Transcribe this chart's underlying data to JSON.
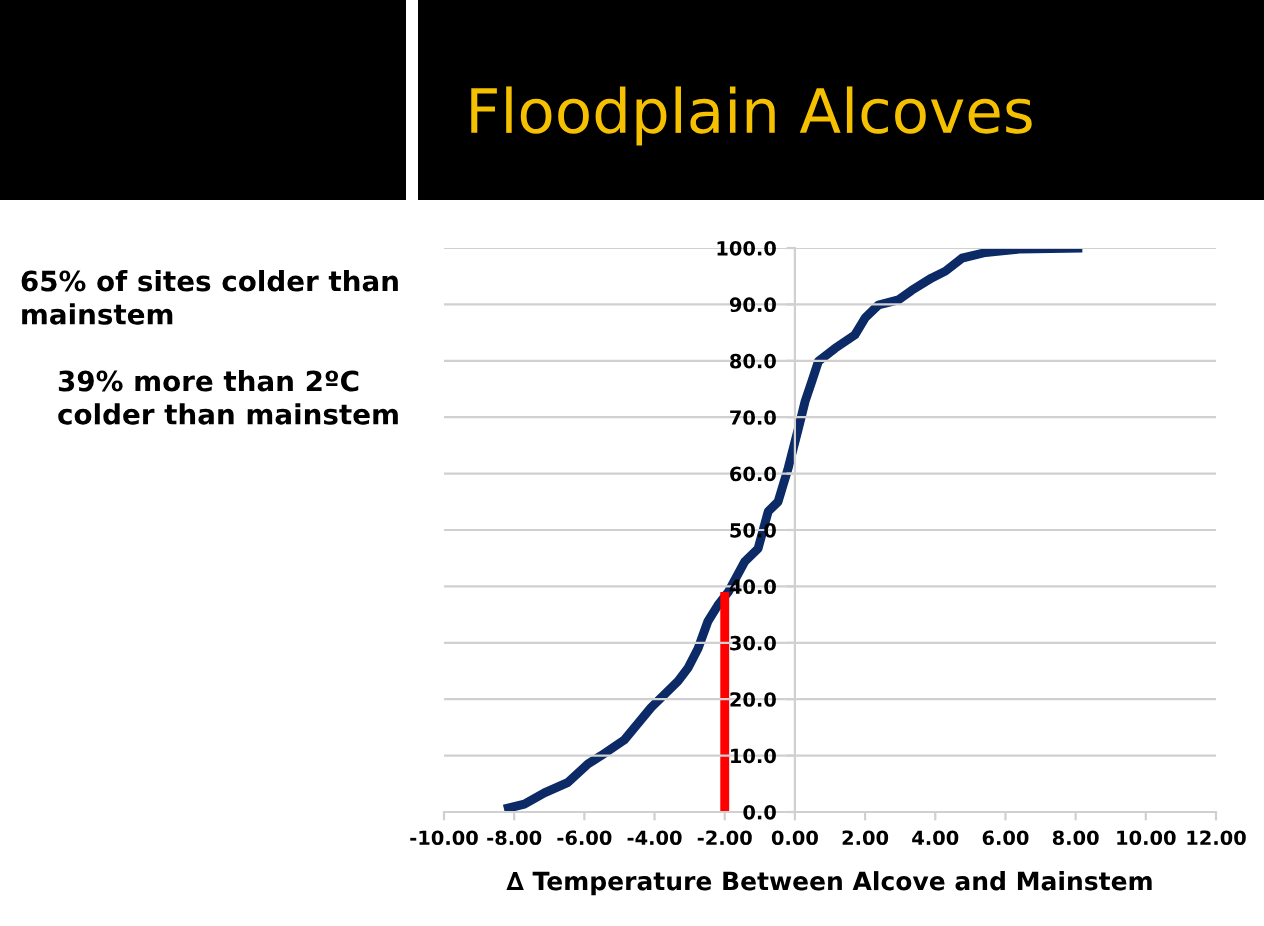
{
  "chart_data": {
    "type": "line",
    "title": "Floodplain Alcoves",
    "xlabel": "∆ Temperature Between Alcove and Mainstem",
    "annotations": [
      "65% of sites colder than mainstem",
      "39% more than 2ºC colder than mainstem"
    ],
    "series": [
      {
        "color": "#0b2a66",
        "x": [
          -8.29,
          -7.71,
          -7.14,
          -6.48,
          -5.9,
          -5.52,
          -4.86,
          -4.1,
          -3.33,
          -3.05,
          -2.76,
          -2.48,
          -2.19,
          -1.9,
          -1.43,
          -1.05,
          -0.76,
          -0.48,
          -0.19,
          0.1,
          0.29,
          0.48,
          0.67,
          1.14,
          1.71,
          2.0,
          2.38,
          2.95,
          3.33,
          3.9,
          4.29,
          4.76,
          5.43,
          6.38,
          8.19
        ],
        "values": [
          0.5,
          1.4,
          3.4,
          5.2,
          8.5,
          10,
          12.8,
          18.5,
          23.2,
          25.5,
          29,
          33.8,
          36.7,
          39,
          44.4,
          46.7,
          53.3,
          55,
          61,
          68,
          72.8,
          76.3,
          79.9,
          82.2,
          84.6,
          87.6,
          89.9,
          90.8,
          92.5,
          94.7,
          95.9,
          98.2,
          99.2,
          99.8,
          100
        ]
      },
      {
        "color": "#ff0000",
        "x": [
          -2.0,
          -2.0
        ],
        "values": [
          0,
          39
        ]
      }
    ],
    "xlim": [
      -10,
      12
    ],
    "ylim": [
      0,
      100
    ],
    "xticks": [
      {
        "value": -10,
        "label": "-10.00"
      },
      {
        "value": -8,
        "label": "-8.00"
      },
      {
        "value": -6,
        "label": "-6.00"
      },
      {
        "value": -4,
        "label": "-4.00"
      },
      {
        "value": -2,
        "label": "-2.00"
      },
      {
        "value": 0,
        "label": "0.00"
      },
      {
        "value": 2,
        "label": "2.00"
      },
      {
        "value": 4,
        "label": "4.00"
      },
      {
        "value": 6,
        "label": "6.00"
      },
      {
        "value": 8,
        "label": "8.00"
      },
      {
        "value": 10,
        "label": "10.00"
      },
      {
        "value": 12,
        "label": "12.00"
      }
    ],
    "yticks": [
      {
        "value": 0,
        "label": "0.0"
      },
      {
        "value": 10,
        "label": "10.0"
      },
      {
        "value": 20,
        "label": "20.0"
      },
      {
        "value": 30,
        "label": "30.0"
      },
      {
        "value": 40,
        "label": "40.0"
      },
      {
        "value": 50,
        "label": "50.0"
      },
      {
        "value": 60,
        "label": "60.0"
      },
      {
        "value": 70,
        "label": "70.0"
      },
      {
        "value": 80,
        "label": "80.0"
      },
      {
        "value": 90,
        "label": "90.0"
      },
      {
        "value": 100,
        "label": "100.0"
      }
    ],
    "grid": "y",
    "legend": false,
    "marker": "none",
    "line_style": "solid"
  }
}
